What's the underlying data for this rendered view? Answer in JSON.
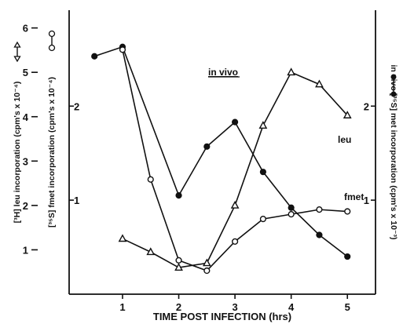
{
  "chart_data": {
    "type": "line",
    "xlabel": "TIME POST INFECTION (hrs)",
    "xlim": [
      0.05,
      5.5
    ],
    "x_ticks": [
      "1",
      "2",
      "3",
      "4",
      "5"
    ],
    "grid": false,
    "axes": {
      "leu": {
        "label": "[³H] leu incorporation (cpm's x 10⁻⁴)",
        "ylim": [
          0,
          6.4
        ],
        "ticks": [
          "1",
          "2",
          "3",
          "4",
          "5",
          "6"
        ]
      },
      "fmet": {
        "label": "[³⁵S] fmet incorporation (cpm's x 10⁻⁴)",
        "ylim": [
          0,
          3.02
        ],
        "ticks": [
          "1",
          "2"
        ]
      },
      "invivo": {
        "label": "in vivo [³⁵S] met incorporation (cpm's x 10⁻³)",
        "ylim": [
          0,
          3.02
        ],
        "ticks": [
          "1",
          "2"
        ]
      }
    },
    "series": [
      {
        "name": "in vivo",
        "axis": "invivo",
        "marker": "filled-circle",
        "x": [
          0.5,
          1.0,
          2.0,
          2.5,
          3.0,
          3.5,
          4.0,
          4.5,
          5.0
        ],
        "y": [
          2.53,
          2.63,
          1.05,
          1.57,
          1.83,
          1.3,
          0.92,
          0.63,
          0.4
        ]
      },
      {
        "name": "fmet",
        "axis": "fmet",
        "marker": "open-circle",
        "x": [
          1.0,
          1.5,
          2.0,
          2.5,
          3.0,
          3.5,
          4.0,
          4.5,
          5.0
        ],
        "y": [
          2.6,
          1.22,
          0.36,
          0.25,
          0.56,
          0.8,
          0.85,
          0.9,
          0.88
        ]
      },
      {
        "name": "leu",
        "axis": "leu",
        "marker": "open-triangle",
        "x": [
          1.0,
          1.5,
          2.0,
          2.5,
          3.0,
          3.5,
          4.0,
          4.5,
          5.0
        ],
        "y": [
          1.25,
          0.95,
          0.6,
          0.7,
          2.0,
          3.8,
          5.0,
          4.73,
          4.03
        ]
      }
    ],
    "annotations": [
      {
        "text": "in vivo",
        "underline": true
      },
      {
        "text": "leu"
      },
      {
        "text": "fmet"
      }
    ]
  }
}
